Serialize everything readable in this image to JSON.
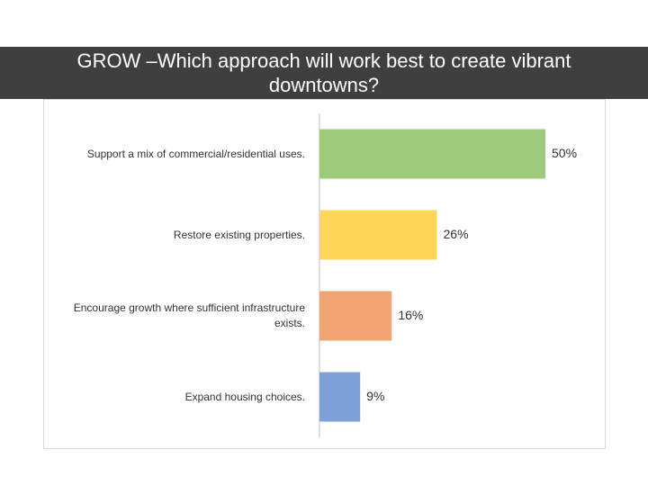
{
  "title": "GROW –Which approach will work best to create vibrant downtowns?",
  "chart_data": {
    "type": "bar",
    "orientation": "horizontal",
    "categories": [
      "Support  a mix of commercial/residential uses.",
      "Restore existing properties.",
      "Encourage growth where sufficient infrastructure exists.",
      "Expand housing choices."
    ],
    "values": [
      50,
      26,
      16,
      9
    ],
    "value_labels": [
      "50%",
      "26%",
      "16%",
      "9%"
    ],
    "colors": [
      "#9dcb7b",
      "#ffd55a",
      "#f0a472",
      "#7f9fd8"
    ],
    "xlim": [
      0,
      60
    ],
    "grid": false,
    "legend": "none"
  }
}
